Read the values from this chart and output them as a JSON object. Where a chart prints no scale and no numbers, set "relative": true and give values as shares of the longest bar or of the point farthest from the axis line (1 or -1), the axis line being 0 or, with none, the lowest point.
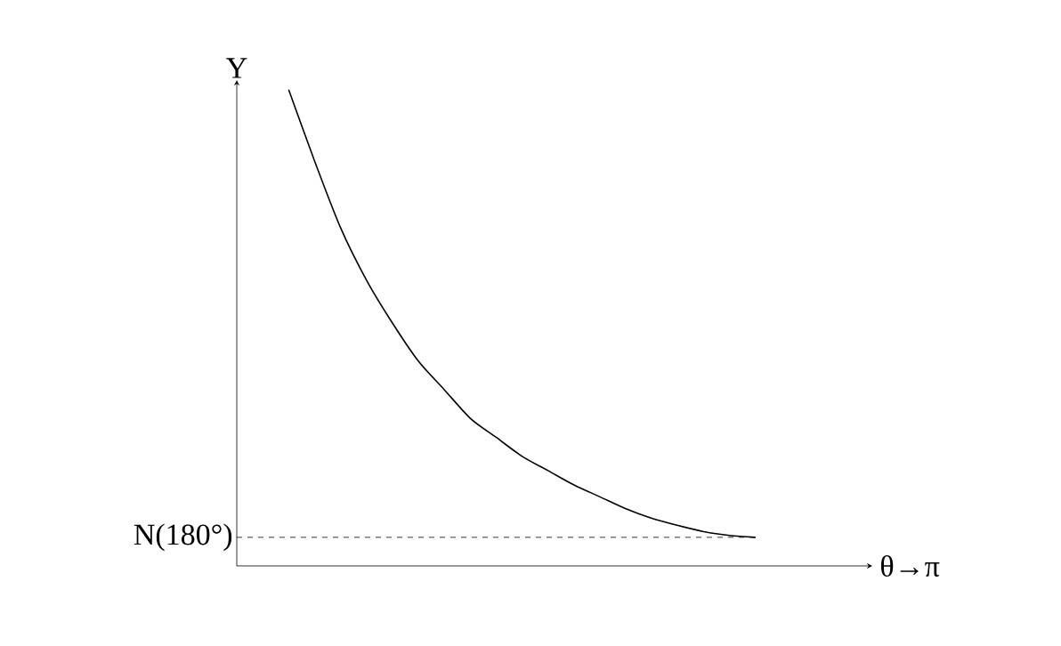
{
  "chart_data": {
    "type": "line",
    "relative": true,
    "ylabel": "Y",
    "xlabel": "θ→π",
    "categories": [
      null,
      null,
      null,
      null,
      null,
      null,
      null,
      null,
      null,
      null,
      null,
      null,
      null,
      null,
      null,
      null,
      null,
      null,
      null
    ],
    "series": [
      {
        "color": "#000000",
        "values": [
          1.0,
          0.85,
          0.71,
          0.6,
          0.51,
          0.43,
          0.37,
          0.31,
          0.27,
          0.23,
          0.2,
          0.17,
          0.145,
          0.12,
          0.1,
          0.085,
          0.072,
          0.064,
          0.06
        ]
      }
    ],
    "ref_lines": [
      {
        "axis": "y",
        "value": 0.06,
        "label": "N(180°)",
        "line_style": "dashed"
      }
    ],
    "marker": "none"
  }
}
